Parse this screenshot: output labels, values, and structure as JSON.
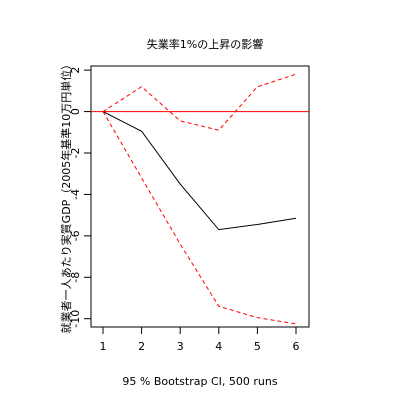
{
  "chart_data": {
    "type": "line",
    "title": "失業率1%の上昇の影響",
    "xlabel": "95 % Bootstrap CI,  500 runs",
    "ylabel": "就業者一人あたり実質GDP（2005年基準10万円単位）",
    "x": [
      1,
      2,
      3,
      4,
      5,
      6
    ],
    "xlim": [
      1,
      6
    ],
    "ylim": [
      -10.4,
      2.2
    ],
    "x_ticks": [
      1,
      2,
      3,
      4,
      5,
      6
    ],
    "y_ticks": [
      2,
      0,
      -2,
      -4,
      -6,
      -8,
      -10
    ],
    "zero_line": {
      "value": 0,
      "color": "#ff0000"
    },
    "series": [
      {
        "role": "estimate",
        "style": "solid",
        "color": "#000000",
        "values": [
          0,
          -0.95,
          -3.5,
          -5.7,
          -5.45,
          -5.15
        ]
      },
      {
        "role": "upper",
        "style": "dashed",
        "color": "#ff0000",
        "values": [
          0,
          1.2,
          -0.45,
          -0.9,
          1.2,
          1.8
        ]
      },
      {
        "role": "lower",
        "style": "dashed",
        "color": "#ff0000",
        "values": [
          0,
          -3.2,
          -6.4,
          -9.4,
          -9.95,
          -10.25
        ]
      }
    ]
  }
}
